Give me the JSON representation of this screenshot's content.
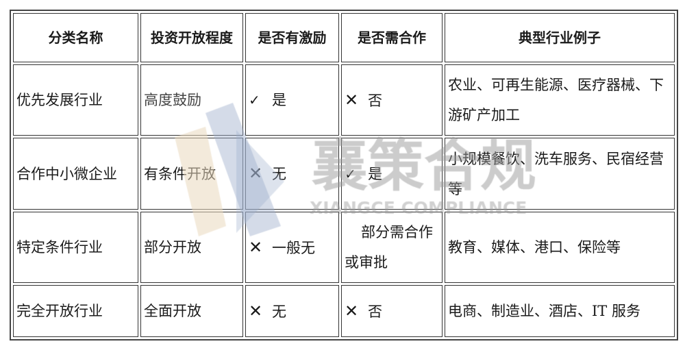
{
  "headers": [
    "分类名称",
    "投资开放程度",
    "是否有激励",
    "是否需合作",
    "典型行业例子"
  ],
  "rows": [
    {
      "category": "优先发展行业",
      "openness": "高度鼓励",
      "incentive": {
        "icon": "check-icon",
        "text": "是"
      },
      "cooperation": {
        "icon": "cross-icon",
        "text": "否"
      },
      "examples": "农业、可再生能源、医疗器械、下游矿产加工"
    },
    {
      "category": "合作中小微企业",
      "openness": "有条件开放",
      "incentive": {
        "icon": "cross-icon",
        "text": "无"
      },
      "cooperation": {
        "icon": "check-icon",
        "text": "是"
      },
      "examples": "小规模餐饮、洗车服务、民宿经营等"
    },
    {
      "category": "特定条件行业",
      "openness": "部分开放",
      "incentive": {
        "icon": "cross-icon",
        "text": "一般无"
      },
      "cooperation": {
        "icon": "",
        "text": "部分需合作或审批"
      },
      "examples": "教育、媒体、港口、保险等"
    },
    {
      "category": "完全开放行业",
      "openness": "全面开放",
      "incentive": {
        "icon": "cross-icon",
        "text": "无"
      },
      "cooperation": {
        "icon": "cross-icon",
        "text": "否"
      },
      "examples": "电商、制造业、酒店、IT 服务"
    }
  ],
  "watermark": {
    "text": "襄策合规",
    "subtext": "XIANGCE COMPLIANCE",
    "colors": {
      "blue": "#9fb0cc",
      "beige": "#ead9bd",
      "gray": "#9a9a9a"
    }
  }
}
